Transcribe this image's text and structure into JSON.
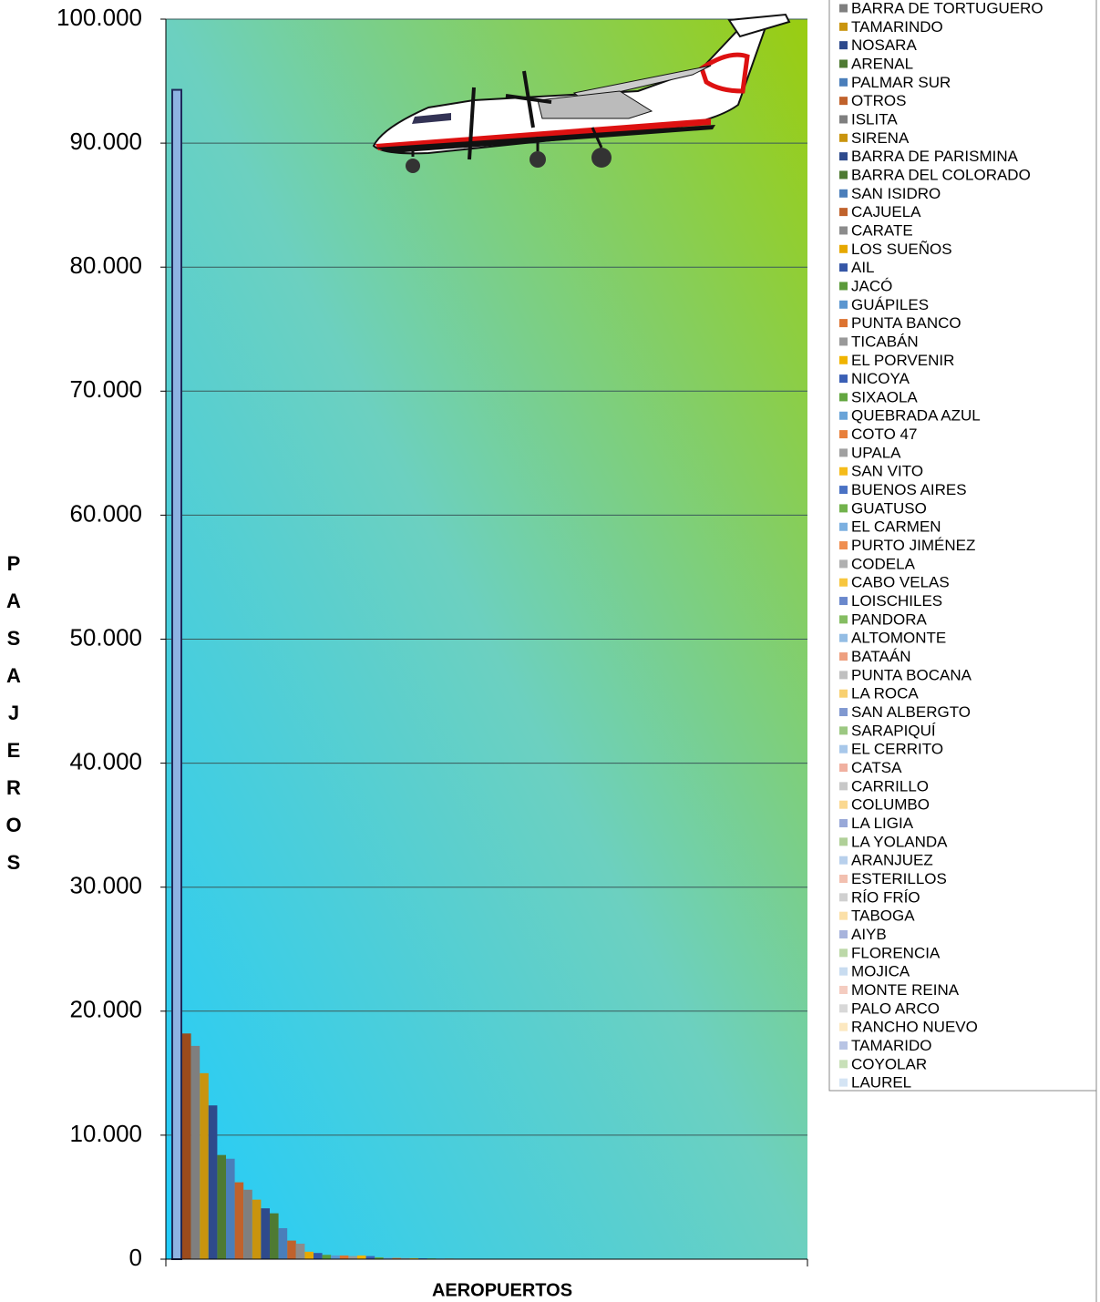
{
  "chart_data": {
    "type": "bar",
    "y_label": "PASAJEROS",
    "x_label": "AEROPUERTOS",
    "ylim": [
      0,
      100000
    ],
    "yticks": [
      0,
      {
        "value": 10000,
        "label": "10.000"
      },
      {
        "value": 20000,
        "label": "20.000"
      },
      {
        "value": 30000,
        "label": "30.000"
      },
      {
        "value": 40000,
        "label": "40.000"
      },
      {
        "value": 50000,
        "label": "50.000"
      },
      {
        "value": 60000,
        "label": "60.000"
      },
      {
        "value": 70000,
        "label": "70.000"
      },
      {
        "value": 80000,
        "label": "80.000"
      },
      {
        "value": 90000,
        "label": "90.000"
      },
      {
        "value": 100000,
        "label": "100.000"
      }
    ],
    "grid": true,
    "legend": "right",
    "series": [
      {
        "name": null,
        "color": "#8db3e2",
        "values": [
          94300
        ]
      },
      {
        "name": null,
        "color": "#9c4b1c",
        "values": [
          18200
        ]
      },
      {
        "name": "BARRA DE TORTUGUERO",
        "color": "#7f7f7f",
        "values": [
          17200
        ]
      },
      {
        "name": "TAMARINDO",
        "color": "#c9940e",
        "values": [
          15000
        ]
      },
      {
        "name": "NOSARA",
        "color": "#2e4a8c",
        "values": [
          12400
        ]
      },
      {
        "name": "ARENAL",
        "color": "#4e7a32",
        "values": [
          8400
        ]
      },
      {
        "name": "PALMAR SUR",
        "color": "#4a7eba",
        "values": [
          8100
        ]
      },
      {
        "name": "OTROS",
        "color": "#c0622c",
        "values": [
          6200
        ]
      },
      {
        "name": "ISLITA",
        "color": "#7f7f7f",
        "values": [
          5600
        ]
      },
      {
        "name": "SIRENA",
        "color": "#c9940e",
        "values": [
          4800
        ]
      },
      {
        "name": "BARRA DE PARISMINA",
        "color": "#2e4a8c",
        "values": [
          4100
        ]
      },
      {
        "name": "BARRA DEL COLORADO",
        "color": "#4e7a32",
        "values": [
          3700
        ]
      },
      {
        "name": "SAN ISIDRO",
        "color": "#4a7eba",
        "values": [
          2500
        ]
      },
      {
        "name": "CAJUELA",
        "color": "#c0622c",
        "values": [
          1500
        ]
      },
      {
        "name": "CARATE",
        "color": "#8c8c8c",
        "values": [
          1250
        ]
      },
      {
        "name": "LOS SUEÑOS",
        "color": "#e6a800",
        "values": [
          600
        ]
      },
      {
        "name": "AIL",
        "color": "#3556a6",
        "values": [
          500
        ]
      },
      {
        "name": "JACÓ",
        "color": "#5b9a3a",
        "values": [
          350
        ]
      },
      {
        "name": "GUÁPILES",
        "color": "#5b96d0",
        "values": [
          300
        ]
      },
      {
        "name": "PUNTA BANCO",
        "color": "#dd7330",
        "values": [
          300
        ]
      },
      {
        "name": "TICABÁN",
        "color": "#999999",
        "values": [
          250
        ]
      },
      {
        "name": "EL PORVENIR",
        "color": "#f0b400",
        "values": [
          300
        ]
      },
      {
        "name": "NICOYA",
        "color": "#3a5fb5",
        "values": [
          250
        ]
      },
      {
        "name": "SIXAOLA",
        "color": "#63a640",
        "values": [
          150
        ]
      },
      {
        "name": "QUEBRADA AZUL",
        "color": "#6aa4d8",
        "values": [
          120
        ]
      },
      {
        "name": "COTO 47",
        "color": "#e8803c",
        "values": [
          100
        ]
      },
      {
        "name": "UPALA",
        "color": "#a0a0a0",
        "values": [
          90
        ]
      },
      {
        "name": "SAN VITO",
        "color": "#f5bc1a",
        "values": [
          80
        ]
      },
      {
        "name": "BUENOS AIRES",
        "color": "#4a72c4",
        "values": [
          70
        ]
      },
      {
        "name": "GUATUSO",
        "color": "#72b24c",
        "values": [
          60
        ]
      },
      {
        "name": "EL CARMEN",
        "color": "#7cb0e0",
        "values": [
          55
        ]
      },
      {
        "name": "PURTO JIMÉNEZ",
        "color": "#ef8e50",
        "values": [
          50
        ]
      },
      {
        "name": "CODELA",
        "color": "#b0b0b0",
        "values": [
          45
        ]
      },
      {
        "name": "CABO VELAS",
        "color": "#f7c63e",
        "values": [
          40
        ]
      },
      {
        "name": "LOISCHILES",
        "color": "#6a88cc",
        "values": [
          35
        ]
      },
      {
        "name": "PANDORA",
        "color": "#85bd62",
        "values": [
          30
        ]
      },
      {
        "name": "ALTOMONTE",
        "color": "#94bde4",
        "values": [
          28
        ]
      },
      {
        "name": "BATAÁN",
        "color": "#eea080",
        "values": [
          25
        ]
      },
      {
        "name": "PUNTA BOCANA",
        "color": "#c0c0c0",
        "values": [
          22
        ]
      },
      {
        "name": "LA ROCA",
        "color": "#f8d070",
        "values": [
          20
        ]
      },
      {
        "name": "SAN ALBERGTO",
        "color": "#8098d0",
        "values": [
          18
        ]
      },
      {
        "name": "SARAPIQUÍ",
        "color": "#9cc882",
        "values": [
          16
        ]
      },
      {
        "name": "EL CERRITO",
        "color": "#a8c8ea",
        "values": [
          14
        ]
      },
      {
        "name": "CATSA",
        "color": "#f0b0a0",
        "values": [
          12
        ]
      },
      {
        "name": "CARRILLO",
        "color": "#c8c8c8",
        "values": [
          10
        ]
      },
      {
        "name": "COLUMBO",
        "color": "#fad890",
        "values": [
          9
        ]
      },
      {
        "name": "LA LIGIA",
        "color": "#98a8d8",
        "values": [
          8
        ]
      },
      {
        "name": "LA YOLANDA",
        "color": "#b0d098",
        "values": [
          7
        ]
      },
      {
        "name": "ARANJUEZ",
        "color": "#b8d0ec",
        "values": [
          6
        ]
      },
      {
        "name": "ESTERILLOS",
        "color": "#f2c0b0",
        "values": [
          5
        ]
      },
      {
        "name": "RÍO FRÍO",
        "color": "#d0d0d0",
        "values": [
          5
        ]
      },
      {
        "name": "TABOGA",
        "color": "#fbe0a8",
        "values": [
          4
        ]
      },
      {
        "name": "AIYB",
        "color": "#a8b4dc",
        "values": [
          4
        ]
      },
      {
        "name": "FLORENCIA",
        "color": "#bcd8a8",
        "values": [
          3
        ]
      },
      {
        "name": "MOJICA",
        "color": "#c8dcf0",
        "values": [
          3
        ]
      },
      {
        "name": "MONTE REINA",
        "color": "#f4ccc0",
        "values": [
          2
        ]
      },
      {
        "name": "PALO ARCO",
        "color": "#d8d8d8",
        "values": [
          2
        ]
      },
      {
        "name": "RANCHO NUEVO",
        "color": "#fce8c0",
        "values": [
          1
        ]
      },
      {
        "name": "TAMARIDO",
        "color": "#b8c4e4",
        "values": [
          1
        ]
      },
      {
        "name": "COYOLAR",
        "color": "#c8e0b8",
        "values": [
          1
        ]
      },
      {
        "name": "LAUREL",
        "color": "#d4e4f4",
        "values": [
          1
        ]
      }
    ]
  }
}
